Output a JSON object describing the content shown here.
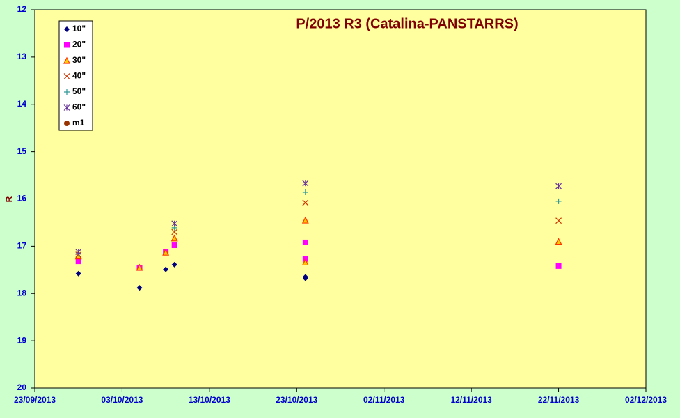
{
  "chart_data": {
    "type": "scatter",
    "title": "P/2013 R3 (Catalina-PANSTARRS)",
    "y_label": "R",
    "x": [
      "2013-09-28",
      "2013-10-05",
      "2013-10-08",
      "2013-10-09",
      "2013-10-24",
      "2013-10-24",
      "2013-11-22"
    ],
    "xlim": [
      "2013-09-23",
      "2013-12-02"
    ],
    "xticks": [
      {
        "value": "2013-09-23",
        "label": "23/09/2013"
      },
      {
        "value": "2013-10-03",
        "label": "03/10/2013"
      },
      {
        "value": "2013-10-13",
        "label": "13/10/2013"
      },
      {
        "value": "2013-10-23",
        "label": "23/10/2013"
      },
      {
        "value": "2013-11-02",
        "label": "02/11/2013"
      },
      {
        "value": "2013-11-12",
        "label": "12/11/2013"
      },
      {
        "value": "2013-11-22",
        "label": "22/11/2013"
      },
      {
        "value": "2013-12-02",
        "label": "02/12/2013"
      }
    ],
    "ylim": [
      12,
      20
    ],
    "yticks": [
      12,
      13,
      14,
      15,
      16,
      17,
      18,
      19,
      20
    ],
    "y_inverted": true,
    "series": [
      {
        "name": "10\"",
        "color": "#000080",
        "marker": "diamond",
        "values": [
          17.58,
          17.88,
          17.49,
          17.39,
          17.65,
          17.68,
          null
        ]
      },
      {
        "name": "20\"",
        "color": "#ff00ff",
        "marker": "square",
        "values": [
          17.32,
          17.46,
          17.12,
          16.98,
          16.92,
          17.27,
          17.42
        ]
      },
      {
        "name": "30\"",
        "color": "#ff3300",
        "marker": "triangle",
        "values": [
          17.21,
          17.45,
          17.13,
          16.83,
          16.45,
          17.34,
          16.9
        ]
      },
      {
        "name": "40\"",
        "color": "#cc3300",
        "marker": "x",
        "values": [
          17.18,
          null,
          null,
          16.7,
          16.08,
          null,
          16.46
        ]
      },
      {
        "name": "50\"",
        "color": "#339999",
        "marker": "plus",
        "values": [
          17.16,
          null,
          null,
          16.61,
          15.86,
          null,
          16.05
        ]
      },
      {
        "name": "60\"",
        "color": "#663399",
        "marker": "star",
        "values": [
          17.12,
          null,
          null,
          16.52,
          15.67,
          null,
          15.73
        ]
      },
      {
        "name": "m1",
        "color": "#993300",
        "marker": "circle",
        "values": [
          null,
          null,
          null,
          null,
          null,
          null,
          null
        ]
      }
    ]
  }
}
